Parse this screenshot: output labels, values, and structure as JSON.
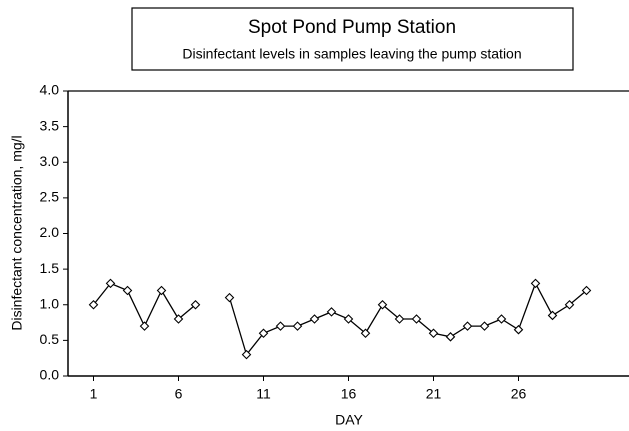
{
  "chart_data": {
    "type": "line",
    "title": "Spot Pond Pump Station",
    "subtitle": "Disinfectant levels in samples leaving the pump station",
    "x_label": "DAY",
    "y_label": "Disinfectant concentration, mg/l",
    "x": [
      1,
      2,
      3,
      4,
      5,
      6,
      7,
      8,
      9,
      10,
      11,
      12,
      13,
      14,
      15,
      16,
      17,
      18,
      19,
      20,
      21,
      22,
      23,
      24,
      25,
      26,
      27,
      28,
      29,
      30
    ],
    "series": [
      {
        "color": "#000000",
        "values": [
          1.0,
          1.3,
          1.2,
          0.7,
          1.2,
          0.8,
          1.0,
          null,
          1.1,
          0.3,
          0.6,
          0.7,
          0.7,
          0.8,
          0.9,
          0.8,
          0.6,
          1.0,
          0.8,
          0.8,
          0.6,
          0.55,
          0.7,
          0.7,
          0.8,
          0.65,
          1.3,
          0.85,
          1.0,
          1.2
        ]
      }
    ],
    "xlim": [
      -0.5,
      32.5
    ],
    "xticks": [
      1,
      6,
      11,
      16,
      21,
      26
    ],
    "ylim": [
      0,
      4
    ],
    "yticks": [
      {
        "value": 0,
        "label": "0.0"
      },
      {
        "value": 0.5,
        "label": "0.5"
      },
      {
        "value": 1,
        "label": "1.0"
      },
      {
        "value": 1.5,
        "label": "1.5"
      },
      {
        "value": 2,
        "label": "2.0"
      },
      {
        "value": 2.5,
        "label": "2.5"
      },
      {
        "value": 3,
        "label": "3.0"
      },
      {
        "value": 3.5,
        "label": "3.5"
      },
      {
        "value": 4,
        "label": "4.0"
      }
    ],
    "grid": false
  }
}
